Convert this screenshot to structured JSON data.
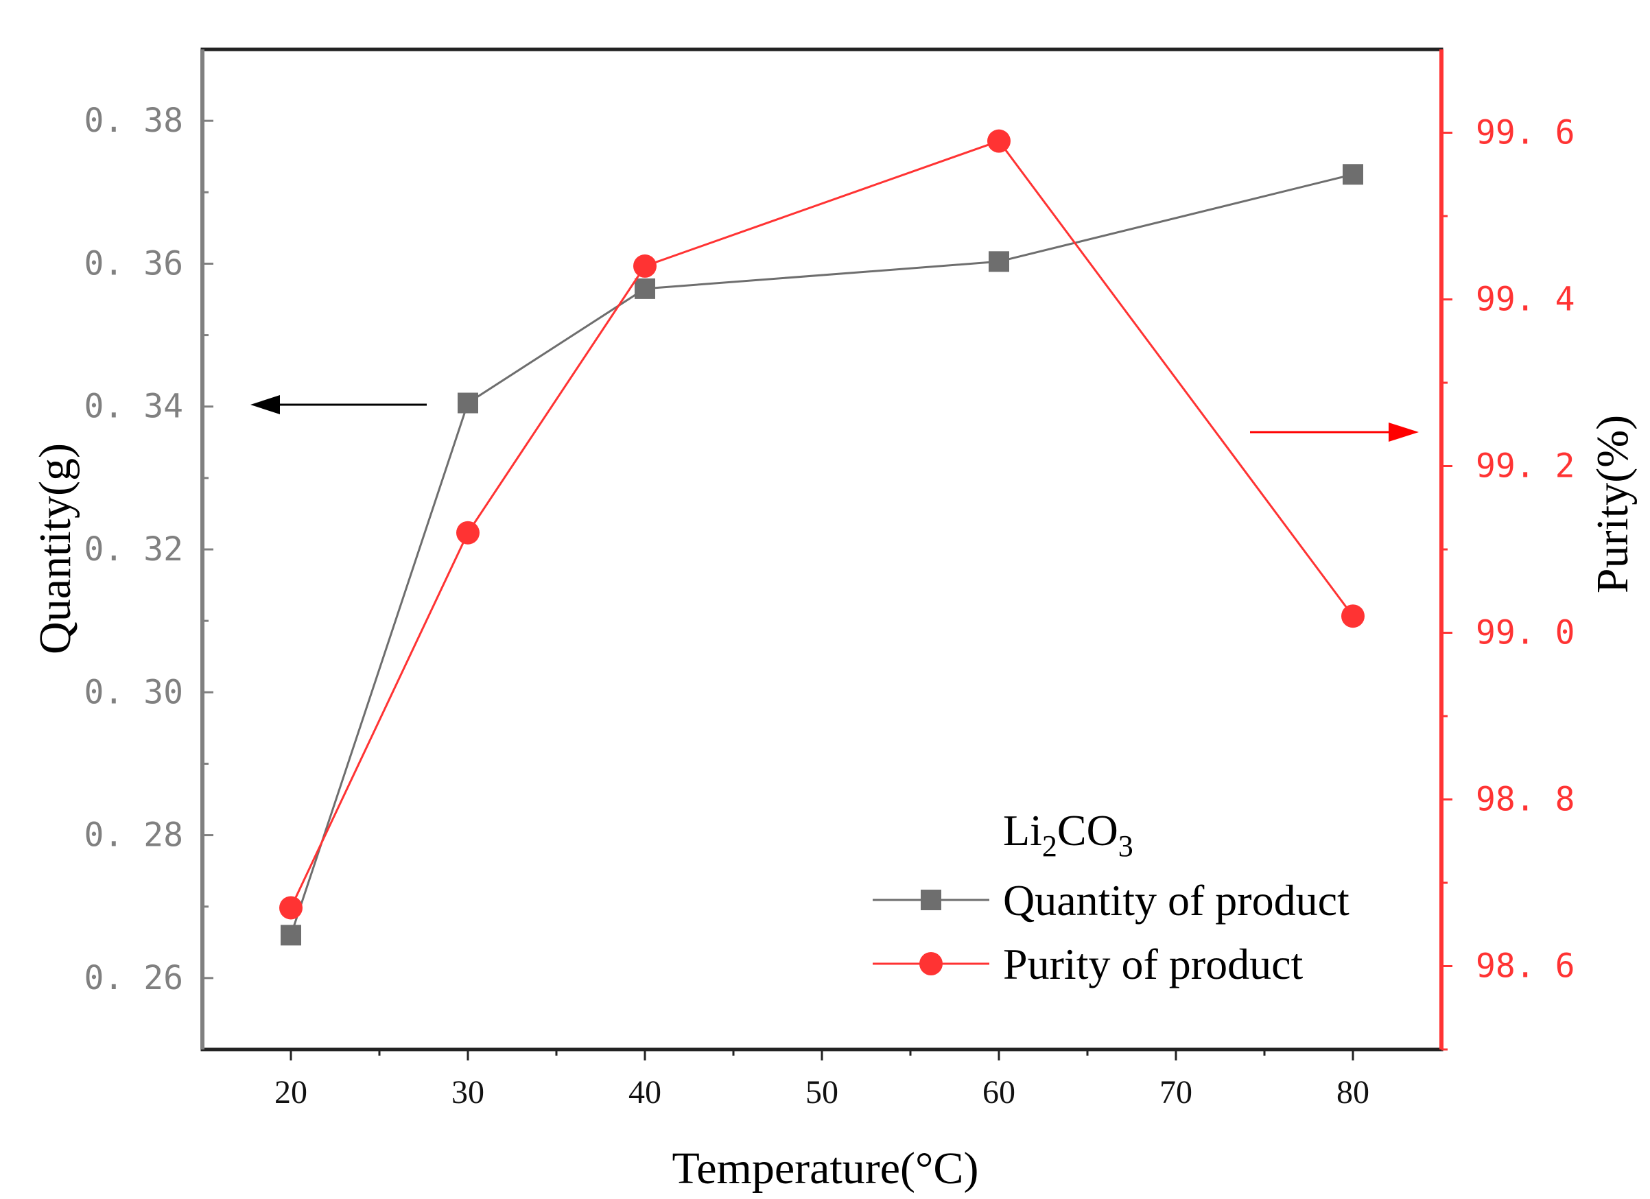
{
  "chart_data": {
    "type": "line",
    "title": "",
    "xlabel": "Temperature(°C)",
    "x": [
      20,
      30,
      40,
      60,
      80
    ],
    "xlim": [
      15,
      85
    ],
    "xticks": [
      "20",
      "30",
      "40",
      "50",
      "60",
      "70",
      "80"
    ],
    "xtick_values": [
      20,
      30,
      40,
      50,
      60,
      70,
      80
    ],
    "y_left": {
      "label": "Quantity(g)",
      "ylim": [
        0.25,
        0.39
      ],
      "tick_values": [
        0.26,
        0.28,
        0.3,
        0.32,
        0.34,
        0.36,
        0.38
      ],
      "ticks": [
        "0. 26",
        "0. 28",
        "0. 30",
        "0. 32",
        "0. 34",
        "0. 36",
        "0. 38"
      ],
      "color": "#808080"
    },
    "y_right": {
      "label": "Purity(%)",
      "ylim": [
        98.5,
        99.7
      ],
      "tick_values": [
        98.6,
        98.8,
        99.0,
        99.2,
        99.4,
        99.6
      ],
      "ticks": [
        "98. 6",
        "98. 8",
        "99. 0",
        "99. 2",
        "99. 4",
        "99. 6"
      ],
      "color": "#ff3333"
    },
    "series": [
      {
        "name": "Quantity of product",
        "axis": "left",
        "marker": "square",
        "color": "#6e6e6e",
        "values": [
          0.266,
          0.3405,
          0.3565,
          0.3603,
          0.3725
        ]
      },
      {
        "name": "Purity of product",
        "axis": "right",
        "marker": "circle",
        "color": "#ff3333",
        "values": [
          98.67,
          99.12,
          99.44,
          99.59,
          99.02
        ]
      }
    ],
    "legend": {
      "title_main": "Li",
      "title_sub1": "2",
      "title_mid": "CO",
      "title_sub2": "3",
      "placement": "bottom-right"
    },
    "annotations": [
      {
        "type": "arrow",
        "direction": "left",
        "color": "#000000",
        "meaning": "left axis"
      },
      {
        "type": "arrow",
        "direction": "right",
        "color": "#ff0000",
        "meaning": "right axis"
      }
    ]
  }
}
